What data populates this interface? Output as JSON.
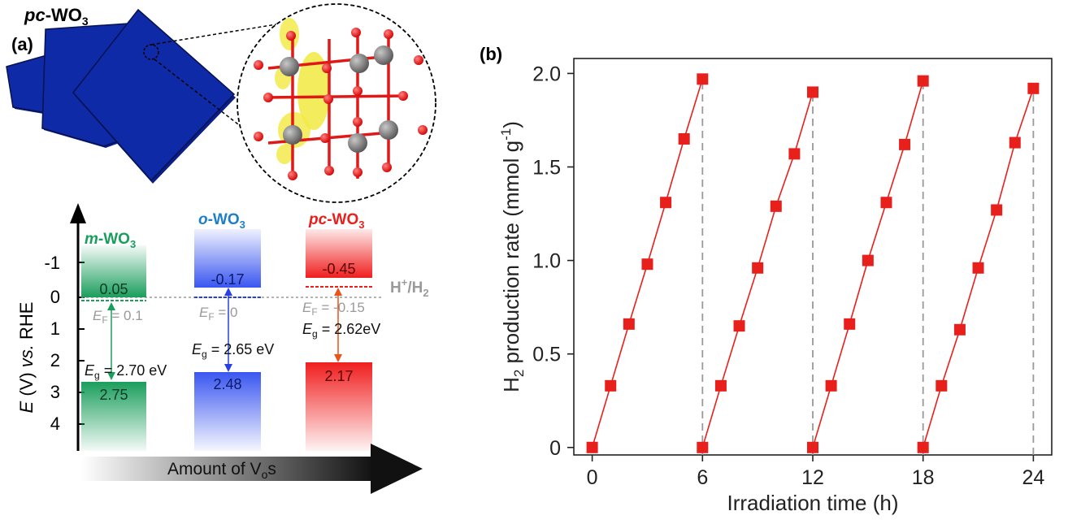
{
  "panel_a": {
    "label": "(a)",
    "top_title": {
      "prefix": "pc",
      "main": "-WO",
      "sub": "3"
    },
    "y_axis": {
      "e": "E",
      "v": " (V) ",
      "vs": "vs.",
      "rhe": " RHE"
    },
    "y_ticks": [
      "-1",
      "0",
      "1",
      "2",
      "3",
      "4"
    ],
    "reference_label": {
      "main": "H",
      "sup": "+",
      "mid": "/H",
      "sub": "2"
    },
    "x_arrow_label": {
      "main": "Amount of V",
      "sub": "o",
      "end": "s"
    },
    "phases": [
      {
        "prefix": "m",
        "main": "-WO",
        "sub": "3",
        "cb": "0.05",
        "vb": "2.75",
        "ef_sub": "F",
        "ef_val": " = 0.1",
        "eg_sub": "g",
        "eg_val": " = 2.70 eV",
        "color": "#1a9e5c"
      },
      {
        "prefix": "o",
        "main": "-WO",
        "sub": "3",
        "cb": "-0.17",
        "vb": "2.48",
        "ef_sub": "F",
        "ef_val": " = 0",
        "eg_sub": "g",
        "eg_val": " = 2.65 eV",
        "color": "#2a3fe0"
      },
      {
        "prefix": "pc",
        "main": "-WO",
        "sub": "3",
        "cb": "-0.45",
        "vb": "2.17",
        "ef_sub": "F",
        "ef_val": " = -0.15",
        "eg_sub": "g",
        "eg_val": " = 2.62eV",
        "color": "#e8201c"
      }
    ]
  },
  "chart_data": {
    "type": "scatter",
    "panel_label": "(b)",
    "xlabel": "Irradiation time (h)",
    "ylabel": {
      "h": "H",
      "sub": "2",
      "rest": " production rate (mmol g",
      "sup": "-1",
      "end": ")"
    },
    "x_ticks": [
      "0",
      "6",
      "12",
      "18",
      "24"
    ],
    "y_ticks": [
      "0",
      "0.5",
      "1.0",
      "1.5",
      "2.0"
    ],
    "xlim": [
      -1,
      25
    ],
    "ylim": [
      -0.04,
      2.08
    ],
    "cycle_boundaries": [
      6,
      12,
      18,
      24
    ],
    "color": "#e8201c",
    "series": [
      {
        "x": [
          0,
          1,
          2,
          3,
          4,
          5,
          6
        ],
        "y": [
          0,
          0.33,
          0.66,
          0.98,
          1.31,
          1.65,
          1.97
        ]
      },
      {
        "x": [
          6,
          7,
          8,
          9,
          10,
          11,
          12
        ],
        "y": [
          0,
          0.33,
          0.65,
          0.96,
          1.29,
          1.57,
          1.9
        ]
      },
      {
        "x": [
          12,
          13,
          14,
          15,
          16,
          17,
          18
        ],
        "y": [
          0,
          0.33,
          0.66,
          1.0,
          1.31,
          1.62,
          1.96
        ]
      },
      {
        "x": [
          18,
          19,
          20,
          21,
          22,
          23,
          24
        ],
        "y": [
          0,
          0.33,
          0.63,
          0.96,
          1.27,
          1.63,
          1.92
        ]
      }
    ]
  }
}
